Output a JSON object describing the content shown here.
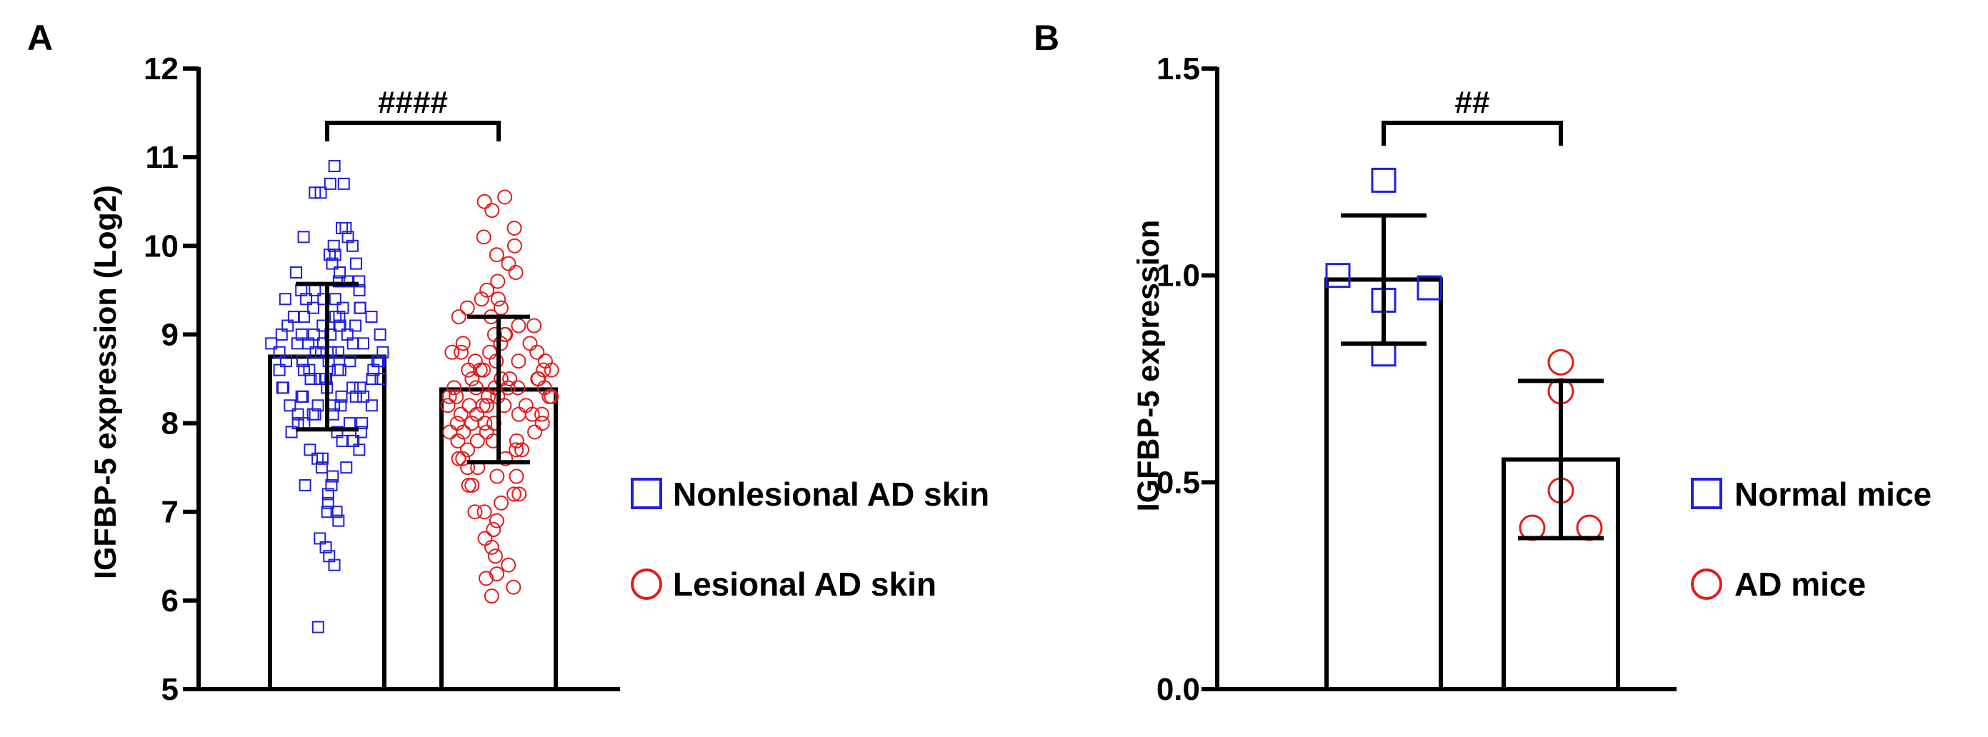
{
  "chart_data": [
    {
      "type": "bar",
      "panel": "A",
      "ylabel": "IGFBP-5 expression (Log2)",
      "ylim": [
        5,
        12
      ],
      "yticks": [
        "5",
        "6",
        "7",
        "8",
        "9",
        "10",
        "11",
        "12"
      ],
      "significance": "####",
      "series": [
        {
          "name": "Nonlesional AD skin",
          "color": "#1f1fe0",
          "marker": "square",
          "mean": 8.75,
          "sd": 0.82,
          "points": [
            5.7,
            6.4,
            6.5,
            6.6,
            6.7,
            6.9,
            7.0,
            7.0,
            7.1,
            7.2,
            7.3,
            7.3,
            7.4,
            7.5,
            7.5,
            7.6,
            7.6,
            7.7,
            7.7,
            7.8,
            7.8,
            7.8,
            7.9,
            7.9,
            7.9,
            8.0,
            8.0,
            8.0,
            8.0,
            8.1,
            8.1,
            8.1,
            8.1,
            8.2,
            8.2,
            8.2,
            8.2,
            8.2,
            8.3,
            8.3,
            8.3,
            8.3,
            8.3,
            8.4,
            8.4,
            8.4,
            8.4,
            8.4,
            8.5,
            8.5,
            8.5,
            8.5,
            8.5,
            8.5,
            8.6,
            8.6,
            8.6,
            8.6,
            8.6,
            8.6,
            8.7,
            8.7,
            8.7,
            8.7,
            8.7,
            8.7,
            8.8,
            8.8,
            8.8,
            8.8,
            8.8,
            8.8,
            8.9,
            8.9,
            8.9,
            8.9,
            8.9,
            8.9,
            9.0,
            9.0,
            9.0,
            9.0,
            9.0,
            9.0,
            9.1,
            9.1,
            9.1,
            9.1,
            9.1,
            9.2,
            9.2,
            9.2,
            9.2,
            9.2,
            9.3,
            9.3,
            9.3,
            9.3,
            9.4,
            9.4,
            9.4,
            9.4,
            9.5,
            9.5,
            9.5,
            9.6,
            9.6,
            9.6,
            9.7,
            9.7,
            9.8,
            9.8,
            9.9,
            9.9,
            10.0,
            10.0,
            10.1,
            10.1,
            10.2,
            10.2,
            10.6,
            10.6,
            10.7,
            10.7,
            10.9
          ]
        },
        {
          "name": "Lesional AD skin",
          "color": "#e41a1a",
          "marker": "circle",
          "mean": 8.38,
          "sd": 0.82,
          "points": [
            6.05,
            6.15,
            6.25,
            6.3,
            6.4,
            6.5,
            6.6,
            6.7,
            6.8,
            6.9,
            7.0,
            7.0,
            7.1,
            7.2,
            7.2,
            7.3,
            7.3,
            7.4,
            7.4,
            7.5,
            7.5,
            7.6,
            7.6,
            7.6,
            7.7,
            7.7,
            7.7,
            7.8,
            7.8,
            7.8,
            7.8,
            7.9,
            7.9,
            7.9,
            7.9,
            8.0,
            8.0,
            8.0,
            8.0,
            8.0,
            8.1,
            8.1,
            8.1,
            8.1,
            8.1,
            8.2,
            8.2,
            8.2,
            8.2,
            8.2,
            8.2,
            8.3,
            8.3,
            8.3,
            8.3,
            8.3,
            8.3,
            8.4,
            8.4,
            8.4,
            8.4,
            8.4,
            8.4,
            8.5,
            8.5,
            8.5,
            8.5,
            8.5,
            8.6,
            8.6,
            8.6,
            8.6,
            8.6,
            8.7,
            8.7,
            8.7,
            8.7,
            8.8,
            8.8,
            8.8,
            8.8,
            8.9,
            8.9,
            8.9,
            9.0,
            9.0,
            9.0,
            9.1,
            9.1,
            9.2,
            9.2,
            9.3,
            9.3,
            9.4,
            9.4,
            9.5,
            9.6,
            9.7,
            9.8,
            9.9,
            10.0,
            10.1,
            10.2,
            10.4,
            10.5,
            10.55
          ]
        }
      ]
    },
    {
      "type": "bar",
      "panel": "B",
      "ylabel": "IGFBP-5 expression",
      "ylim": [
        0.0,
        1.5
      ],
      "yticks": [
        "0.0",
        "0.5",
        "1.0",
        "1.5"
      ],
      "significance": "##",
      "series": [
        {
          "name": "Normal mice",
          "color": "#1f1fe0",
          "marker": "square",
          "mean": 0.99,
          "sd": 0.155,
          "points": [
            1.0,
            1.23,
            0.94,
            0.97,
            0.81
          ]
        },
        {
          "name": "AD mice",
          "color": "#e41a1a",
          "marker": "circle",
          "mean": 0.555,
          "sd": 0.19,
          "points": [
            0.79,
            0.72,
            0.48,
            0.39,
            0.39
          ]
        }
      ]
    }
  ]
}
